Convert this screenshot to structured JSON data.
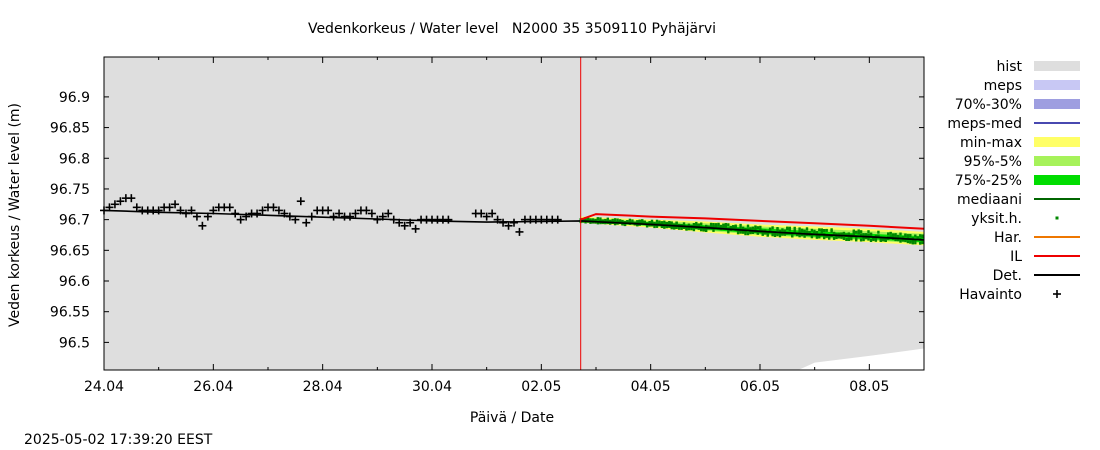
{
  "chart_data": {
    "type": "line",
    "title": "Vedenkorkeus / Water level   N2000 35 3509110 Pyhäjärvi",
    "xlabel": "Päivä / Date",
    "ylabel": "Veden korkeus / Water level (m)",
    "timestamp": "2025-05-02 17:39:20 EEST",
    "x_range_days": [
      0,
      15
    ],
    "ylim": [
      96.455,
      96.965
    ],
    "x_ticks": [
      {
        "day": 0,
        "label": "24.04"
      },
      {
        "day": 2,
        "label": "26.04"
      },
      {
        "day": 4,
        "label": "28.04"
      },
      {
        "day": 6,
        "label": "30.04"
      },
      {
        "day": 8,
        "label": "02.05"
      },
      {
        "day": 10,
        "label": "04.05"
      },
      {
        "day": 12,
        "label": "06.05"
      },
      {
        "day": 14,
        "label": "08.05"
      }
    ],
    "y_ticks": [
      96.5,
      96.55,
      96.6,
      96.65,
      96.7,
      96.75,
      96.8,
      96.85,
      96.9
    ],
    "forecast_start_day": 8.72,
    "legend": [
      {
        "label": "hist",
        "kind": "box",
        "color": "#dedede"
      },
      {
        "label": "meps",
        "kind": "box",
        "color": "#c8c8f4"
      },
      {
        "label": "70%-30%",
        "kind": "box",
        "color": "#9e9ee0"
      },
      {
        "label": "meps-med",
        "kind": "line",
        "color": "#4848b0"
      },
      {
        "label": "min-max",
        "kind": "box",
        "color": "#ffff66"
      },
      {
        "label": "95%-5%",
        "kind": "box",
        "color": "#a6f25a"
      },
      {
        "label": "75%-25%",
        "kind": "box",
        "color": "#00dd00"
      },
      {
        "label": "mediaani",
        "kind": "line",
        "color": "#006600"
      },
      {
        "label": "yksit.h.",
        "kind": "dot",
        "color": "#008800"
      },
      {
        "label": "Har.",
        "kind": "line",
        "color": "#ee7700"
      },
      {
        "label": "IL",
        "kind": "line",
        "color": "#ee0000"
      },
      {
        "label": "Det.",
        "kind": "line",
        "color": "#000000"
      },
      {
        "label": "Havainto",
        "kind": "plus",
        "color": "#000000"
      }
    ],
    "series": [
      {
        "name": "Havainto",
        "x": [
          0,
          0.1,
          0.2,
          0.3,
          0.4,
          0.5,
          0.6,
          0.7,
          0.8,
          0.9,
          1.0,
          1.1,
          1.2,
          1.3,
          1.4,
          1.5,
          1.6,
          1.7,
          1.8,
          1.9,
          2.0,
          2.1,
          2.2,
          2.3,
          2.4,
          2.5,
          2.6,
          2.7,
          2.8,
          2.9,
          3.0,
          3.1,
          3.2,
          3.3,
          3.4,
          3.5,
          3.6,
          3.7,
          3.8,
          3.9,
          4.0,
          4.1,
          4.2,
          4.3,
          4.4,
          4.5,
          4.6,
          4.7,
          4.8,
          4.9,
          5.0,
          5.1,
          5.2,
          5.3,
          5.4,
          5.5,
          5.6,
          5.7,
          5.8,
          5.9,
          6.0,
          6.1,
          6.2,
          6.3,
          6.8,
          6.9,
          7.0,
          7.1,
          7.2,
          7.3,
          7.4,
          7.5,
          7.6,
          7.7,
          7.8,
          7.9,
          8.0,
          8.1,
          8.2,
          8.3
        ],
        "y": [
          96.715,
          96.72,
          96.725,
          96.73,
          96.735,
          96.735,
          96.72,
          96.715,
          96.715,
          96.715,
          96.715,
          96.72,
          96.72,
          96.725,
          96.715,
          96.71,
          96.715,
          96.705,
          96.69,
          96.705,
          96.715,
          96.72,
          96.72,
          96.72,
          96.71,
          96.7,
          96.705,
          96.71,
          96.71,
          96.715,
          96.72,
          96.72,
          96.715,
          96.71,
          96.705,
          96.7,
          96.73,
          96.695,
          96.705,
          96.715,
          96.715,
          96.715,
          96.705,
          96.71,
          96.705,
          96.705,
          96.71,
          96.715,
          96.715,
          96.71,
          96.7,
          96.705,
          96.71,
          96.7,
          96.695,
          96.69,
          96.695,
          96.685,
          96.7,
          96.7,
          96.7,
          96.7,
          96.7,
          96.7,
          96.71,
          96.71,
          96.705,
          96.71,
          96.7,
          96.695,
          96.69,
          96.695,
          96.68,
          96.7,
          96.7,
          96.7,
          96.7,
          96.7,
          96.7,
          96.7
        ]
      },
      {
        "name": "Det.",
        "x": [
          0,
          1,
          2,
          3,
          4,
          5,
          6,
          7,
          8,
          8.72,
          10,
          11,
          12,
          13,
          14,
          15
        ],
        "y": [
          96.715,
          96.712,
          96.71,
          96.707,
          96.704,
          96.701,
          96.698,
          96.696,
          96.697,
          96.698,
          96.692,
          96.687,
          96.681,
          96.676,
          96.672,
          96.667
        ]
      },
      {
        "name": "IL",
        "x": [
          8.72,
          9.0,
          10,
          11,
          12,
          13,
          14,
          15
        ],
        "y": [
          96.7,
          96.709,
          96.705,
          96.702,
          96.698,
          96.694,
          96.69,
          96.685
        ]
      },
      {
        "name": "mediaani",
        "x": [
          8.72,
          10,
          11,
          12,
          13,
          14,
          15
        ],
        "y": [
          96.698,
          96.693,
          96.687,
          96.681,
          96.676,
          96.672,
          96.667
        ]
      },
      {
        "name": "min-max",
        "x": [
          8.72,
          10,
          11,
          12,
          13,
          14,
          15
        ],
        "upper": [
          96.705,
          96.7,
          96.697,
          96.692,
          96.689,
          96.685,
          96.68
        ],
        "lower": [
          96.695,
          96.687,
          96.679,
          96.672,
          96.667,
          96.663,
          96.658
        ]
      },
      {
        "name": "95%-5%",
        "x": [
          8.72,
          10,
          11,
          12,
          13,
          14,
          15
        ],
        "upper": [
          96.703,
          96.698,
          96.694,
          96.689,
          96.685,
          96.681,
          96.677
        ],
        "lower": [
          96.696,
          96.689,
          96.682,
          96.675,
          96.67,
          96.666,
          96.661
        ]
      },
      {
        "name": "75%-25%",
        "x": [
          8.72,
          10,
          11,
          12,
          13,
          14,
          15
        ],
        "upper": [
          96.7,
          96.696,
          96.691,
          96.686,
          96.681,
          96.677,
          96.673
        ],
        "lower": [
          96.697,
          96.69,
          96.684,
          96.677,
          96.672,
          96.668,
          96.663
        ]
      },
      {
        "name": "hist",
        "x": [
          12.7,
          13,
          14,
          15
        ],
        "lower": [
          96.455,
          96.467,
          96.478,
          96.49
        ]
      }
    ]
  }
}
